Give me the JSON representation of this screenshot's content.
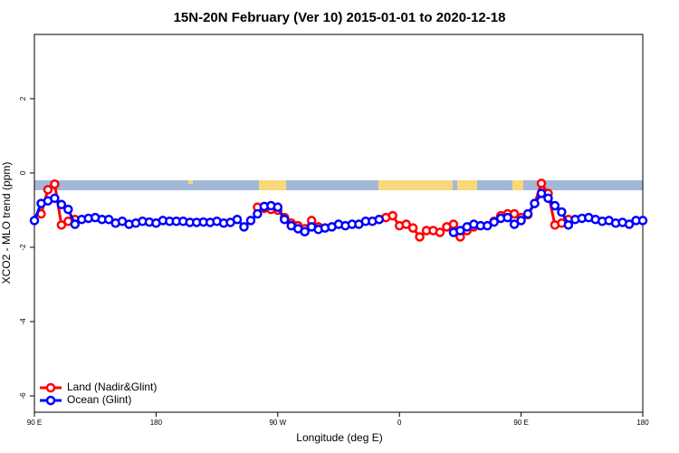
{
  "chart_data": {
    "type": "line",
    "title": "15N-20N February (Ver 10)   2015-01-01 to 2020-12-18",
    "x_label": "Longitude (deg E)",
    "y_label": "XCO2 - MLO trend (ppm)",
    "xlim": [
      90,
      540
    ],
    "ylim": [
      -6.44,
      3.73
    ],
    "xticks": [
      {
        "value": 90,
        "label": "90 E"
      },
      {
        "value": 180,
        "label": "180"
      },
      {
        "value": 270,
        "label": "90 W"
      },
      {
        "value": 360,
        "label": "0"
      },
      {
        "value": 450,
        "label": "90 E"
      },
      {
        "value": 540,
        "label": "180"
      }
    ],
    "yticks": [
      -6,
      -4,
      -2,
      0,
      2
    ],
    "legend": "bottom-left",
    "x": [
      90,
      95,
      100,
      105,
      110,
      115,
      120,
      125,
      130,
      135,
      140,
      145,
      150,
      155,
      160,
      165,
      170,
      175,
      180,
      185,
      190,
      195,
      200,
      205,
      210,
      215,
      220,
      225,
      230,
      235,
      240,
      245,
      250,
      255,
      260,
      265,
      270,
      275,
      280,
      285,
      290,
      295,
      300,
      305,
      310,
      315,
      320,
      325,
      330,
      335,
      340,
      345,
      350,
      355,
      360,
      365,
      370,
      375,
      380,
      385,
      390,
      395,
      400,
      405,
      410,
      415,
      420,
      425,
      430,
      435,
      440,
      445,
      450,
      455,
      460,
      465,
      470,
      475,
      480,
      485,
      490,
      495,
      500,
      505,
      510,
      515,
      520,
      525,
      530,
      535,
      540
    ],
    "series": [
      {
        "name": "Land (Nadir&Glint)",
        "color": "#ff0000",
        "values": [
          null,
          -1.1,
          -0.45,
          -0.3,
          -1.4,
          -1.3,
          -1.25,
          null,
          null,
          null,
          null,
          null,
          null,
          null,
          null,
          null,
          null,
          null,
          null,
          null,
          null,
          null,
          null,
          null,
          null,
          null,
          null,
          null,
          null,
          null,
          null,
          null,
          null,
          -0.92,
          -0.95,
          -0.98,
          -1.0,
          -1.2,
          -1.35,
          -1.42,
          -1.5,
          -1.28,
          -1.45,
          null,
          null,
          null,
          null,
          null,
          null,
          null,
          null,
          -1.25,
          -1.2,
          -1.15,
          -1.42,
          -1.38,
          -1.48,
          -1.72,
          -1.55,
          -1.55,
          -1.6,
          -1.45,
          -1.38,
          -1.72,
          -1.55,
          -1.45,
          null,
          null,
          -1.3,
          -1.15,
          -1.1,
          -1.1,
          -1.2,
          -1.12,
          -0.82,
          -0.28,
          -0.55,
          -1.4,
          -1.35,
          -1.25,
          null,
          null,
          null,
          null,
          null,
          null,
          null,
          null,
          null,
          null,
          null
        ]
      },
      {
        "name": "Ocean (Glint)",
        "color": "#0000ff",
        "values": [
          -1.28,
          -0.82,
          -0.75,
          -0.68,
          -0.85,
          -0.98,
          -1.38,
          -1.25,
          -1.22,
          -1.2,
          -1.25,
          -1.25,
          -1.35,
          -1.3,
          -1.38,
          -1.35,
          -1.3,
          -1.32,
          -1.35,
          -1.28,
          -1.3,
          -1.3,
          -1.3,
          -1.33,
          -1.33,
          -1.32,
          -1.33,
          -1.3,
          -1.35,
          -1.33,
          -1.25,
          -1.45,
          -1.28,
          -1.1,
          -0.9,
          -0.88,
          -0.92,
          -1.25,
          -1.42,
          -1.5,
          -1.58,
          -1.45,
          -1.52,
          -1.48,
          -1.45,
          -1.38,
          -1.42,
          -1.38,
          -1.38,
          -1.3,
          -1.3,
          -1.25,
          null,
          null,
          null,
          null,
          null,
          null,
          null,
          null,
          null,
          null,
          -1.6,
          -1.55,
          -1.45,
          -1.38,
          -1.42,
          -1.42,
          -1.32,
          -1.22,
          -1.2,
          -1.38,
          -1.28,
          -1.1,
          -0.82,
          -0.55,
          -0.68,
          -0.88,
          -1.05,
          -1.4,
          -1.25,
          -1.22,
          -1.2,
          -1.25,
          -1.3,
          -1.28,
          -1.35,
          -1.33,
          -1.38,
          -1.28,
          -1.28
        ]
      }
    ]
  }
}
